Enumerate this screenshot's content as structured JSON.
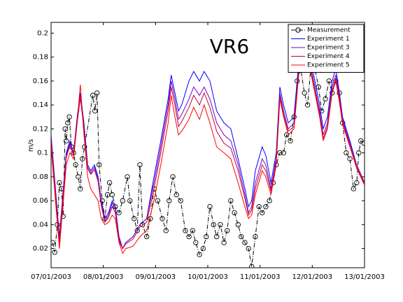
{
  "chart_data": {
    "type": "line",
    "title": "VR6",
    "y_label": "m/s",
    "xlim": [
      7,
      13
    ],
    "xticks": [
      {
        "value": 7,
        "label": "07/01/2003"
      },
      {
        "value": 8,
        "label": "08/01/2003"
      },
      {
        "value": 9,
        "label": "09/01/2003"
      },
      {
        "value": 10,
        "label": "10/01/2003"
      },
      {
        "value": 11,
        "label": "11/01/2003"
      },
      {
        "value": 12,
        "label": "12/01/2003"
      },
      {
        "value": 13,
        "label": "13/01/2003"
      }
    ],
    "ylim": [
      0.004,
      0.209
    ],
    "yticks": [
      0.02,
      0.04,
      0.06,
      0.08,
      0.1,
      0.12,
      0.14,
      0.16,
      0.18,
      0.2
    ],
    "grid": false,
    "legend": "northeast",
    "x": [
      7.0,
      7.16,
      7.29,
      7.36,
      7.43,
      7.5,
      7.56,
      7.63,
      7.7,
      7.76,
      7.83,
      7.9,
      7.96,
      8.03,
      8.1,
      8.17,
      8.23,
      8.3,
      8.37,
      8.43,
      8.57,
      8.7,
      8.83,
      8.97,
      9.1,
      9.24,
      9.3,
      9.37,
      9.44,
      9.5,
      9.64,
      9.73,
      9.84,
      9.93,
      10.04,
      10.17,
      10.31,
      10.44,
      10.58,
      10.71,
      10.78,
      10.84,
      10.91,
      11.04,
      11.11,
      11.21,
      11.31,
      11.38,
      11.45,
      11.54,
      11.65,
      11.75,
      11.85,
      11.91,
      12.05,
      12.14,
      12.21,
      12.29,
      12.38,
      12.45,
      12.52,
      12.58,
      12.72,
      12.85,
      13.0
    ],
    "series": [
      {
        "name": "Measurement",
        "color": "#000000",
        "style": "dashdot",
        "marker": "circle",
        "x": [
          7.03,
          7.07,
          7.12,
          7.16,
          7.2,
          7.23,
          7.27,
          7.29,
          7.32,
          7.35,
          7.39,
          7.43,
          7.47,
          7.52,
          7.56,
          7.6,
          7.64,
          7.8,
          7.84,
          7.88,
          7.92,
          7.98,
          8.03,
          8.08,
          8.12,
          8.17,
          8.23,
          8.3,
          8.37,
          8.46,
          8.51,
          8.59,
          8.65,
          8.7,
          8.75,
          8.83,
          8.9,
          8.97,
          9.04,
          9.13,
          9.2,
          9.26,
          9.33,
          9.4,
          9.48,
          9.57,
          9.64,
          9.71,
          9.77,
          9.84,
          9.91,
          9.97,
          10.04,
          10.11,
          10.17,
          10.24,
          10.31,
          10.37,
          10.44,
          10.51,
          10.58,
          10.64,
          10.71,
          10.78,
          10.84,
          10.91,
          10.98,
          11.04,
          11.11,
          11.18,
          11.25,
          11.31,
          11.38,
          11.45,
          11.51,
          11.58,
          11.65,
          11.71,
          11.78,
          11.85,
          11.91,
          11.98,
          12.05,
          12.12,
          12.18,
          12.25,
          12.32,
          12.38,
          12.45,
          12.52,
          12.58,
          12.65,
          12.72,
          12.79,
          12.85,
          12.89,
          12.93,
          12.99
        ],
        "values": [
          0.025,
          0.017,
          0.04,
          0.075,
          0.07,
          0.047,
          0.12,
          0.11,
          0.125,
          0.13,
          0.105,
          0.1,
          0.09,
          0.08,
          0.07,
          0.095,
          0.105,
          0.148,
          0.135,
          0.15,
          0.09,
          0.06,
          0.045,
          0.065,
          0.075,
          0.065,
          0.055,
          0.05,
          0.06,
          0.08,
          0.06,
          0.045,
          0.035,
          0.09,
          0.04,
          0.03,
          0.045,
          0.07,
          0.06,
          0.045,
          0.035,
          0.06,
          0.08,
          0.065,
          0.06,
          0.035,
          0.03,
          0.035,
          0.025,
          0.015,
          0.02,
          0.03,
          0.055,
          0.04,
          0.03,
          0.04,
          0.025,
          0.035,
          0.06,
          0.05,
          0.04,
          0.03,
          0.025,
          0.02,
          0.005,
          0.03,
          0.055,
          0.05,
          0.055,
          0.06,
          0.075,
          0.09,
          0.1,
          0.1,
          0.115,
          0.11,
          0.13,
          0.16,
          0.17,
          0.15,
          0.14,
          0.175,
          0.17,
          0.155,
          0.135,
          0.145,
          0.16,
          0.15,
          0.16,
          0.15,
          0.125,
          0.1,
          0.095,
          0.07,
          0.075,
          0.1,
          0.11,
          0.108
        ]
      },
      {
        "name": "Experiment 1",
        "color": "#0000ff",
        "values": [
          0.115,
          0.03,
          0.1,
          0.11,
          0.1,
          0.13,
          0.15,
          0.125,
          0.09,
          0.085,
          0.09,
          0.08,
          0.06,
          0.045,
          0.05,
          0.06,
          0.055,
          0.03,
          0.02,
          0.025,
          0.03,
          0.04,
          0.045,
          0.08,
          0.11,
          0.145,
          0.165,
          0.15,
          0.135,
          0.14,
          0.16,
          0.168,
          0.16,
          0.168,
          0.16,
          0.135,
          0.125,
          0.12,
          0.095,
          0.07,
          0.055,
          0.06,
          0.085,
          0.105,
          0.098,
          0.075,
          0.1,
          0.155,
          0.14,
          0.125,
          0.13,
          0.18,
          0.2,
          0.19,
          0.16,
          0.14,
          0.12,
          0.13,
          0.16,
          0.17,
          0.15,
          0.13,
          0.11,
          0.09,
          0.075
        ]
      },
      {
        "name": "Experiment 3",
        "color": "#8000c0",
        "values": [
          0.112,
          0.028,
          0.098,
          0.108,
          0.1,
          0.128,
          0.148,
          0.122,
          0.088,
          0.083,
          0.088,
          0.078,
          0.058,
          0.043,
          0.048,
          0.058,
          0.053,
          0.028,
          0.02,
          0.025,
          0.03,
          0.04,
          0.045,
          0.075,
          0.105,
          0.14,
          0.16,
          0.145,
          0.128,
          0.132,
          0.145,
          0.155,
          0.148,
          0.155,
          0.145,
          0.125,
          0.115,
          0.11,
          0.09,
          0.065,
          0.05,
          0.055,
          0.075,
          0.095,
          0.09,
          0.07,
          0.095,
          0.15,
          0.135,
          0.12,
          0.125,
          0.175,
          0.195,
          0.185,
          0.155,
          0.135,
          0.115,
          0.125,
          0.155,
          0.165,
          0.148,
          0.128,
          0.108,
          0.09,
          0.075
        ]
      },
      {
        "name": "Experiment 4",
        "color": "#c00040",
        "values": [
          0.11,
          0.025,
          0.096,
          0.106,
          0.098,
          0.125,
          0.146,
          0.12,
          0.087,
          0.082,
          0.086,
          0.076,
          0.056,
          0.042,
          0.046,
          0.055,
          0.05,
          0.026,
          0.02,
          0.024,
          0.028,
          0.038,
          0.042,
          0.07,
          0.1,
          0.135,
          0.155,
          0.14,
          0.122,
          0.126,
          0.138,
          0.148,
          0.14,
          0.15,
          0.138,
          0.118,
          0.108,
          0.104,
          0.085,
          0.062,
          0.048,
          0.052,
          0.07,
          0.09,
          0.085,
          0.068,
          0.092,
          0.148,
          0.132,
          0.118,
          0.122,
          0.172,
          0.192,
          0.182,
          0.152,
          0.132,
          0.112,
          0.122,
          0.152,
          0.162,
          0.145,
          0.126,
          0.106,
          0.088,
          0.074
        ]
      },
      {
        "name": "Experiment 5",
        "color": "#ff0000",
        "values": [
          0.105,
          0.02,
          0.09,
          0.1,
          0.095,
          0.125,
          0.157,
          0.115,
          0.08,
          0.07,
          0.065,
          0.06,
          0.045,
          0.04,
          0.042,
          0.048,
          0.045,
          0.025,
          0.016,
          0.02,
          0.022,
          0.03,
          0.035,
          0.06,
          0.09,
          0.125,
          0.148,
          0.13,
          0.115,
          0.118,
          0.128,
          0.138,
          0.128,
          0.14,
          0.125,
          0.105,
          0.1,
          0.095,
          0.075,
          0.055,
          0.045,
          0.048,
          0.065,
          0.085,
          0.08,
          0.065,
          0.09,
          0.145,
          0.13,
          0.115,
          0.12,
          0.17,
          0.19,
          0.18,
          0.15,
          0.13,
          0.11,
          0.12,
          0.15,
          0.16,
          0.142,
          0.124,
          0.105,
          0.087,
          0.073
        ]
      }
    ]
  }
}
